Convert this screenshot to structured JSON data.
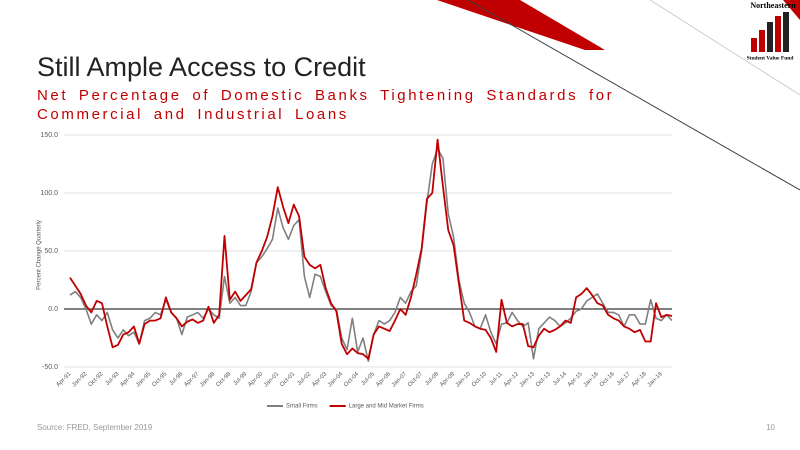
{
  "logo": {
    "name": "Northeastern",
    "subtitle": "Student Value Fund"
  },
  "chart_data": {
    "type": "line",
    "title": "Still Ample Access to Credit",
    "subtitle": "Net Percentage of Domestic Banks Tightening Standards for Commercial and Industrial Loans",
    "ylabel": "Percent Change Quarterly",
    "categories": [
      "Apr-91",
      null,
      null,
      "Jan-92",
      null,
      null,
      "Oct-92",
      null,
      null,
      "Jul-93",
      null,
      null,
      "Apr-94",
      null,
      null,
      "Jan-95",
      null,
      null,
      "Oct-95",
      null,
      null,
      "Jul-96",
      null,
      null,
      "Apr-97",
      null,
      null,
      "Jan-98",
      null,
      null,
      "Oct-98",
      null,
      null,
      "Jul-99",
      null,
      null,
      "Apr-00",
      null,
      null,
      "Jan-01",
      null,
      null,
      "Oct-01",
      null,
      null,
      "Jul-02",
      null,
      null,
      "Apr-03",
      null,
      null,
      "Jan-04",
      null,
      null,
      "Oct-04",
      null,
      null,
      "Jul-05",
      null,
      null,
      "Apr-06",
      null,
      null,
      "Jan-07",
      null,
      null,
      "Oct-07",
      null,
      null,
      "Jul-08",
      null,
      null,
      "Apr-09",
      null,
      null,
      "Jan-10",
      null,
      null,
      "Oct-10",
      null,
      null,
      "Jul-11",
      null,
      null,
      "Apr-12",
      null,
      null,
      "Jan-13",
      null,
      null,
      "Oct-13",
      null,
      null,
      "Jul-14",
      null,
      null,
      "Apr-15",
      null,
      null,
      "Jan-16",
      null,
      null,
      "Oct-16",
      null,
      null,
      "Jul-17",
      null,
      null,
      "Apr-18",
      null,
      null,
      "Jan-19",
      null,
      null
    ],
    "series": [
      {
        "name": "Small Firms",
        "color": "#808080",
        "values": [
          12,
          15,
          10,
          0,
          -13,
          -5,
          -10,
          -3,
          -18,
          -25,
          -18,
          -23,
          -20,
          -30,
          -10,
          -8,
          -3,
          -5,
          8,
          -3,
          -8,
          -22,
          -7,
          -5,
          -3,
          -8,
          0,
          -5,
          -8,
          28,
          5,
          10,
          3,
          3,
          15,
          40,
          45,
          52,
          60,
          87,
          70,
          60,
          72,
          77,
          28,
          10,
          30,
          28,
          15,
          3,
          0,
          -25,
          -35,
          -8,
          -37,
          -25,
          -45,
          -22,
          -10,
          -13,
          -10,
          -3,
          10,
          5,
          15,
          20,
          50,
          92,
          125,
          138,
          130,
          82,
          62,
          25,
          5,
          -3,
          -15,
          -17,
          -5,
          -20,
          -30,
          -13,
          -12,
          -3,
          -10,
          -15,
          -12,
          -43,
          -17,
          -12,
          -7,
          -10,
          -15,
          -12,
          -8,
          -2,
          0,
          7,
          10,
          13,
          5,
          -3,
          -3,
          -5,
          -15,
          -5,
          -5,
          -13,
          -13,
          8,
          -8,
          -10,
          -5,
          -10
        ]
      },
      {
        "name": "Large and Mid Market Firms",
        "color": "#c00000",
        "values": [
          27,
          20,
          13,
          3,
          -3,
          7,
          5,
          -15,
          -33,
          -31,
          -22,
          -20,
          -15,
          -30,
          -13,
          -10,
          -10,
          -8,
          10,
          -3,
          -8,
          -15,
          -11,
          -9,
          -12,
          -10,
          2,
          -12,
          -5,
          63,
          8,
          15,
          7,
          12,
          17,
          40,
          50,
          62,
          80,
          105,
          88,
          74,
          90,
          80,
          45,
          38,
          35,
          38,
          18,
          5,
          -2,
          -30,
          -39,
          -34,
          -38,
          -39,
          -43,
          -22,
          -15,
          -17,
          -19,
          -10,
          0,
          -5,
          10,
          30,
          52,
          95,
          100,
          146,
          106,
          68,
          55,
          22,
          -10,
          -12,
          -15,
          -17,
          -18,
          -25,
          -37,
          8,
          -12,
          -15,
          -13,
          -13,
          -32,
          -33,
          -23,
          -17,
          -20,
          -18,
          -15,
          -10,
          -12,
          10,
          13,
          18,
          12,
          5,
          3,
          -5,
          -8,
          -10,
          -15,
          -17,
          -20,
          -18,
          -28,
          -28,
          5,
          -7,
          -5,
          -6
        ]
      }
    ],
    "ylim": [
      -50,
      150
    ],
    "yticks": [
      {
        "value": -50,
        "label": "-50.0"
      },
      {
        "value": 0,
        "label": "0.0"
      },
      {
        "value": 50,
        "label": "50.0"
      },
      {
        "value": 100,
        "label": "100.0"
      },
      {
        "value": 150,
        "label": "150.0"
      }
    ],
    "grid": true,
    "legend": "bottom"
  },
  "source": "Source: FRED, September 2019",
  "page_number": "10"
}
